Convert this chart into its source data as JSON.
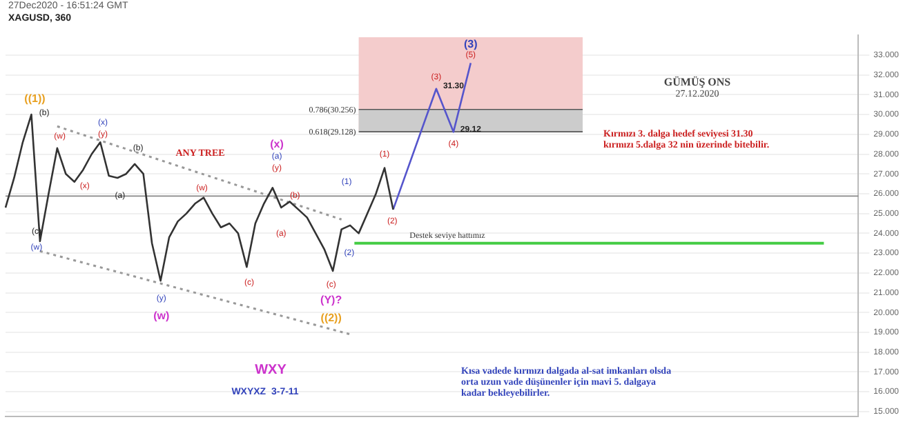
{
  "chart_data": {
    "type": "line",
    "title": "XAGUSD, 360",
    "subtitle": "27Dec2020 - 16:51:24 GMT",
    "categories": [
      null,
      null,
      null,
      null,
      null,
      null,
      null,
      null,
      null,
      null,
      null,
      null,
      null,
      null,
      null,
      null,
      null,
      null,
      null,
      null,
      null,
      null,
      null,
      null,
      null,
      null,
      null,
      null,
      null,
      null,
      null,
      null,
      null,
      null,
      null,
      null,
      null,
      null,
      null,
      null,
      null,
      null,
      null,
      null,
      null,
      null,
      null,
      null,
      null,
      null,
      null,
      null,
      null,
      null,
      null,
      null,
      null,
      null,
      null,
      null,
      null,
      null,
      null,
      null,
      null,
      null,
      null,
      null,
      null,
      null,
      null,
      null,
      null,
      null,
      null,
      null,
      null,
      null,
      null,
      null,
      null,
      null,
      null,
      null,
      null,
      null,
      null,
      null,
      null,
      null,
      null,
      null,
      null,
      null,
      null,
      null,
      null,
      null,
      null,
      null
    ],
    "ylim": [
      14.75,
      34
    ],
    "yticks": [
      {
        "value": 15,
        "label": "15.000"
      },
      {
        "value": 16,
        "label": "16.000"
      },
      {
        "value": 17,
        "label": "17.000"
      },
      {
        "value": 18,
        "label": "18.000"
      },
      {
        "value": 19,
        "label": "19.000"
      },
      {
        "value": 20,
        "label": "20.000"
      },
      {
        "value": 21,
        "label": "21.000"
      },
      {
        "value": 22,
        "label": "22.000"
      },
      {
        "value": 23,
        "label": "23.000"
      },
      {
        "value": 24,
        "label": "24.000"
      },
      {
        "value": 25,
        "label": "25.000"
      },
      {
        "value": 26,
        "label": "26.000"
      },
      {
        "value": 27,
        "label": "27.000"
      },
      {
        "value": 28,
        "label": "28.000"
      },
      {
        "value": 29,
        "label": "29.000"
      },
      {
        "value": 30,
        "label": "30.000"
      },
      {
        "value": 31,
        "label": "31.000"
      },
      {
        "value": 32,
        "label": "32.000"
      },
      {
        "value": 33,
        "label": "33.000"
      }
    ],
    "tick_labels": "y",
    "grid": "y",
    "legend": false,
    "marker": "none",
    "series": [
      {
        "color": "#333333",
        "values": [
          25.3,
          26.8,
          28.6,
          30.0,
          23.6,
          26.0,
          28.3,
          27.0,
          26.6,
          27.2,
          28.0,
          28.6,
          26.9,
          26.8,
          27.0,
          27.5,
          27.0,
          23.5,
          21.6,
          23.8,
          24.6,
          25.0,
          25.5,
          25.8,
          25.0,
          24.3,
          24.5,
          24.0,
          22.3,
          24.5,
          25.5,
          26.3,
          25.3,
          25.6,
          25.2,
          24.8,
          24.0,
          23.2,
          22.1,
          24.2,
          24.4,
          24.0,
          25.0,
          26.0,
          27.3,
          25.2,
          null,
          null,
          null,
          null,
          null,
          null,
          null,
          null,
          null,
          null,
          null,
          null,
          null,
          null,
          null,
          null,
          null,
          null,
          null,
          null,
          null,
          null,
          null,
          null,
          null,
          null,
          null,
          null,
          null,
          null,
          null,
          null,
          null,
          null,
          null,
          null,
          null,
          null,
          null,
          null,
          null,
          null,
          null,
          null,
          null,
          null,
          null,
          null,
          null,
          null,
          null,
          null,
          null,
          null
        ]
      },
      {
        "color": "#5555cc",
        "values": [
          null,
          null,
          null,
          null,
          null,
          null,
          null,
          null,
          null,
          null,
          null,
          null,
          null,
          null,
          null,
          null,
          null,
          null,
          null,
          null,
          null,
          null,
          null,
          null,
          null,
          null,
          null,
          null,
          null,
          null,
          null,
          null,
          null,
          null,
          null,
          null,
          null,
          null,
          null,
          null,
          null,
          null,
          null,
          null,
          null,
          25.2,
          null,
          null,
          null,
          null,
          31.3,
          null,
          29.12,
          null,
          32.6,
          null,
          null,
          null,
          null,
          null,
          null,
          null,
          null,
          null,
          null,
          null,
          null,
          null,
          null,
          null,
          null,
          null,
          null,
          null,
          null,
          null,
          null,
          null,
          null,
          null,
          null,
          null,
          null,
          null,
          null,
          null,
          null,
          null,
          null,
          null,
          null,
          null,
          null,
          null,
          null,
          null,
          null,
          null,
          null,
          null
        ],
        "value_labels": [
          null,
          null,
          null,
          null,
          null,
          null,
          null,
          null,
          null,
          null,
          null,
          null,
          null,
          null,
          null,
          null,
          null,
          null,
          null,
          null,
          null,
          null,
          null,
          null,
          null,
          null,
          null,
          null,
          null,
          null,
          null,
          null,
          null,
          null,
          null,
          null,
          null,
          null,
          null,
          null,
          null,
          null,
          null,
          null,
          null,
          null,
          null,
          null,
          null,
          null,
          "31.30",
          null,
          "29.12",
          null,
          null,
          null,
          null,
          null,
          null,
          null,
          null,
          null,
          null,
          null,
          null,
          null,
          null,
          null,
          null,
          null,
          null,
          null,
          null,
          null,
          null,
          null,
          null,
          null,
          null,
          null,
          null,
          null,
          null,
          null,
          null,
          null,
          null,
          null,
          null,
          null,
          null,
          null,
          null,
          null,
          null,
          null,
          null,
          null,
          null,
          null
        ]
      },
      {
        "color": "#999999",
        "line_style": "dotted",
        "values": [
          null,
          null,
          null,
          null,
          null,
          null,
          29.4,
          null,
          null,
          null,
          null,
          null,
          null,
          null,
          null,
          null,
          null,
          null,
          null,
          null,
          null,
          null,
          null,
          null,
          null,
          null,
          null,
          null,
          null,
          null,
          null,
          null,
          null,
          null,
          null,
          null,
          null,
          null,
          null,
          24.7,
          null,
          null,
          null,
          null,
          null,
          null,
          null,
          null,
          null,
          null,
          null,
          null,
          null,
          null,
          null,
          null,
          null,
          null,
          null,
          null,
          null,
          null,
          null,
          null,
          null,
          null,
          null,
          null,
          null,
          null,
          null,
          null,
          null,
          null,
          null,
          null,
          null,
          null,
          null,
          null,
          null,
          null,
          null,
          null,
          null,
          null,
          null,
          null,
          null,
          null,
          null,
          null,
          null,
          null,
          null,
          null,
          null,
          null,
          null,
          null
        ]
      },
      {
        "color": "#999999",
        "line_style": "dotted",
        "values": [
          null,
          null,
          null,
          null,
          23.1,
          null,
          null,
          null,
          null,
          null,
          null,
          null,
          null,
          null,
          null,
          null,
          null,
          null,
          null,
          null,
          null,
          null,
          null,
          null,
          null,
          null,
          null,
          null,
          null,
          null,
          null,
          null,
          null,
          null,
          null,
          null,
          null,
          null,
          null,
          null,
          18.9,
          null,
          null,
          null,
          null,
          null,
          null,
          null,
          null,
          null,
          null,
          null,
          null,
          null,
          null,
          null,
          null,
          null,
          null,
          null,
          null,
          null,
          null,
          null,
          null,
          null,
          null,
          null,
          null,
          null,
          null,
          null,
          null,
          null,
          null,
          null,
          null,
          null,
          null,
          null,
          null,
          null,
          null,
          null,
          null,
          null,
          null,
          null,
          null,
          null,
          null,
          null,
          null,
          null,
          null,
          null,
          null,
          null,
          null,
          null
        ]
      }
    ],
    "bands": [
      {
        "axis": "y",
        "from": 29.128,
        "to": 33.9,
        "color": "#f4cccc"
      },
      {
        "axis": "y",
        "from": 29.128,
        "to": 30.256,
        "color": "#cccccc"
      }
    ],
    "ref_lines": [
      {
        "axis": "y",
        "value": 30.256,
        "label": "0.786(30.256)",
        "color": "#555555"
      },
      {
        "axis": "y",
        "value": 29.128,
        "label": "0.618(29.128)",
        "color": "#555555"
      },
      {
        "axis": "y",
        "value": 23.5,
        "label": "Destek seviye hattımız",
        "color": "#44cc44"
      },
      {
        "axis": "y",
        "value": 25.88,
        "color": "#888888"
      }
    ],
    "annotations": [
      "((1))",
      "(b)",
      "(w)",
      "(x)",
      "(x)",
      "(y)",
      "(a)",
      "(b)",
      "(c)",
      "(w)",
      "(y)",
      "(w)",
      "(w)",
      "(c)",
      "(x)",
      "(a)",
      "(y)",
      "(b)",
      "(a)",
      "(c)",
      "(Y)?",
      "((2))",
      "(1)",
      "(2)",
      "(1)",
      "(2)",
      "(3)",
      "(4)",
      "(5)",
      "(3)",
      "ANY TREE",
      "GÜMÜŞ ONS",
      "27.12.2020",
      "Kırmızı 3. dalga hedef seviyesi 31.30",
      "kırmızı 5.dalga 32 nin üzerinde bitebilir.",
      "WXY",
      "WXYXZ  3-7-11",
      "Kısa vadede kırmızı dalgada al-sat imkanları olsda",
      "orta uzun vade düşünenler için mavi 5. dalgaya",
      "kadar bekleyebilirler."
    ]
  }
}
